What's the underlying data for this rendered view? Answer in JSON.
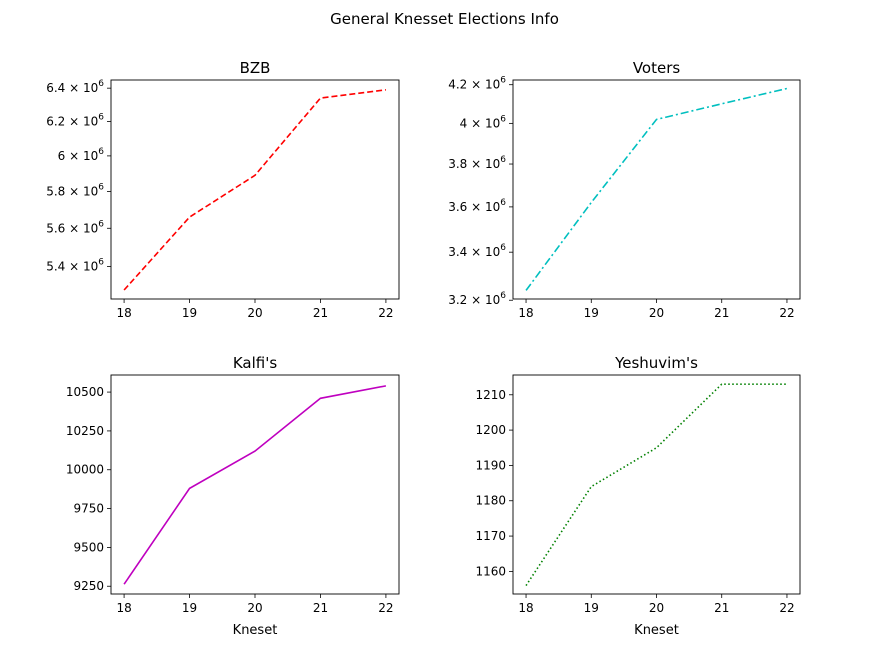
{
  "figure": {
    "suptitle": "General Knesset Elections Info"
  },
  "chart_data": [
    {
      "type": "line",
      "title": "BZB",
      "xlabel": "",
      "ylabel": "",
      "x": [
        18,
        19,
        20,
        21,
        22
      ],
      "series": [
        {
          "values": [
            5280000,
            5660000,
            5890000,
            6340000,
            6390000
          ],
          "color": "#ff0000",
          "linestyle": "dashed"
        }
      ],
      "yscale": "log",
      "xlim": [
        17.8,
        22.2
      ],
      "ylim": [
        5235000,
        6450000
      ],
      "xticks": [
        18,
        19,
        20,
        21,
        22
      ],
      "xtick_labels": [
        "18",
        "19",
        "20",
        "21",
        "22"
      ],
      "yticks": [
        5400000,
        5600000,
        5800000,
        6000000,
        6200000,
        6400000
      ],
      "ytick_labels": [
        {
          "base": "5.4 × 10",
          "exp": "6"
        },
        {
          "base": "5.6 × 10",
          "exp": "6"
        },
        {
          "base": "5.8 × 10",
          "exp": "6"
        },
        {
          "base": "6 × 10",
          "exp": "6"
        },
        {
          "base": "6.2 × 10",
          "exp": "6"
        },
        {
          "base": "6.4 × 10",
          "exp": "6"
        }
      ],
      "grid": false
    },
    {
      "type": "line",
      "title": "Voters",
      "xlabel": "",
      "ylabel": "",
      "x": [
        18,
        19,
        20,
        21,
        22
      ],
      "series": [
        {
          "values": [
            3240000,
            3620000,
            4020000,
            4100000,
            4180000
          ],
          "color": "#00bfbf",
          "linestyle": "dashdot"
        }
      ],
      "yscale": "log",
      "xlim": [
        17.8,
        22.2
      ],
      "ylim": [
        3205000,
        4225000
      ],
      "xticks": [
        18,
        19,
        20,
        21,
        22
      ],
      "xtick_labels": [
        "18",
        "19",
        "20",
        "21",
        "22"
      ],
      "yticks": [
        3200000,
        3400000,
        3600000,
        3800000,
        4000000,
        4200000
      ],
      "ytick_labels": [
        {
          "base": "3.2 × 10",
          "exp": "6"
        },
        {
          "base": "3.4 × 10",
          "exp": "6"
        },
        {
          "base": "3.6 × 10",
          "exp": "6"
        },
        {
          "base": "3.8 × 10",
          "exp": "6"
        },
        {
          "base": "4 × 10",
          "exp": "6"
        },
        {
          "base": "4.2 × 10",
          "exp": "6"
        }
      ],
      "grid": false
    },
    {
      "type": "line",
      "title": "Kalfi's",
      "xlabel": "Kneset",
      "ylabel": "",
      "x": [
        18,
        19,
        20,
        21,
        22
      ],
      "series": [
        {
          "values": [
            9263,
            9880,
            10120,
            10460,
            10540
          ],
          "color": "#bf00bf",
          "linestyle": "solid"
        }
      ],
      "yscale": "linear",
      "xlim": [
        17.8,
        22.2
      ],
      "ylim": [
        9200,
        10610
      ],
      "xticks": [
        18,
        19,
        20,
        21,
        22
      ],
      "xtick_labels": [
        "18",
        "19",
        "20",
        "21",
        "22"
      ],
      "yticks": [
        9250,
        9500,
        9750,
        10000,
        10250,
        10500
      ],
      "ytick_labels": [
        {
          "base": "9250",
          "exp": ""
        },
        {
          "base": "9500",
          "exp": ""
        },
        {
          "base": "9750",
          "exp": ""
        },
        {
          "base": "10000",
          "exp": ""
        },
        {
          "base": "10250",
          "exp": ""
        },
        {
          "base": "10500",
          "exp": ""
        }
      ],
      "grid": false
    },
    {
      "type": "line",
      "title": "Yeshuvim's",
      "xlabel": "Kneset",
      "ylabel": "",
      "x": [
        18,
        19,
        20,
        21,
        22
      ],
      "series": [
        {
          "values": [
            1156,
            1184,
            1195,
            1213,
            1213
          ],
          "color": "#008000",
          "linestyle": "dotted"
        }
      ],
      "yscale": "linear",
      "xlim": [
        17.8,
        22.2
      ],
      "ylim": [
        1153.6,
        1215.6
      ],
      "xticks": [
        18,
        19,
        20,
        21,
        22
      ],
      "xtick_labels": [
        "18",
        "19",
        "20",
        "21",
        "22"
      ],
      "yticks": [
        1160,
        1170,
        1180,
        1190,
        1200,
        1210
      ],
      "ytick_labels": [
        {
          "base": "1160",
          "exp": ""
        },
        {
          "base": "1170",
          "exp": ""
        },
        {
          "base": "1180",
          "exp": ""
        },
        {
          "base": "1190",
          "exp": ""
        },
        {
          "base": "1200",
          "exp": ""
        },
        {
          "base": "1210",
          "exp": ""
        }
      ],
      "grid": false
    }
  ]
}
